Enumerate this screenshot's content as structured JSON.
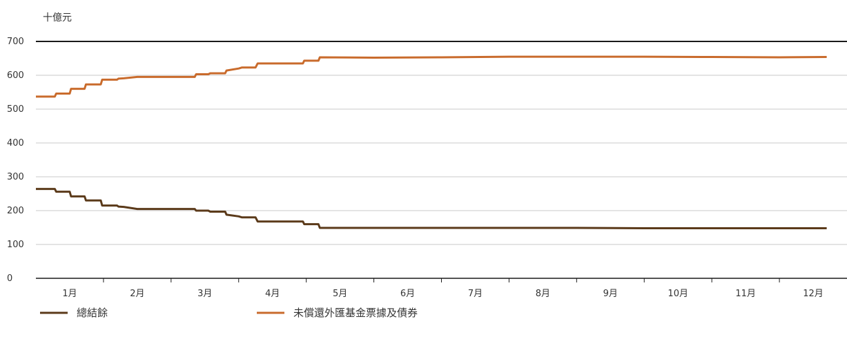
{
  "chart_data": {
    "type": "line",
    "title": "",
    "unit_label": "十億元",
    "xlabel": "",
    "ylabel": "",
    "ylim": [
      0,
      700
    ],
    "yticks": [
      0,
      100,
      200,
      300,
      400,
      500,
      600,
      700
    ],
    "x_tick_labels": [
      "1月",
      "2月",
      "3月",
      "4月",
      "5月",
      "6月",
      "7月",
      "8月",
      "9月",
      "10月",
      "11月",
      "12月"
    ],
    "xlim": [
      0,
      12
    ],
    "grid": true,
    "legend_position": "bottom",
    "series": [
      {
        "name": "總結餘",
        "color": "#5b3a1a",
        "points": [
          [
            0.0,
            264
          ],
          [
            0.28,
            264
          ],
          [
            0.3,
            256
          ],
          [
            0.5,
            256
          ],
          [
            0.52,
            242
          ],
          [
            0.72,
            242
          ],
          [
            0.74,
            230
          ],
          [
            0.96,
            230
          ],
          [
            0.98,
            215
          ],
          [
            1.2,
            215
          ],
          [
            1.22,
            212
          ],
          [
            1.3,
            211
          ],
          [
            1.5,
            205
          ],
          [
            1.8,
            205
          ],
          [
            2.0,
            205
          ],
          [
            2.35,
            205
          ],
          [
            2.37,
            200
          ],
          [
            2.55,
            200
          ],
          [
            2.58,
            197
          ],
          [
            2.8,
            197
          ],
          [
            2.82,
            188
          ],
          [
            3.0,
            183
          ],
          [
            3.05,
            180
          ],
          [
            3.25,
            180
          ],
          [
            3.28,
            168
          ],
          [
            3.95,
            168
          ],
          [
            3.97,
            160
          ],
          [
            4.18,
            160
          ],
          [
            4.2,
            149
          ],
          [
            5.0,
            149
          ],
          [
            6.0,
            149
          ],
          [
            7.0,
            149
          ],
          [
            8.0,
            149
          ],
          [
            9.0,
            148
          ],
          [
            10.0,
            148
          ],
          [
            11.0,
            148
          ],
          [
            11.7,
            148
          ]
        ]
      },
      {
        "name": "未償還外匯基金票據及債券",
        "color": "#c96b2c",
        "points": [
          [
            0.0,
            537
          ],
          [
            0.28,
            537
          ],
          [
            0.3,
            546
          ],
          [
            0.5,
            546
          ],
          [
            0.52,
            560
          ],
          [
            0.72,
            560
          ],
          [
            0.74,
            573
          ],
          [
            0.96,
            573
          ],
          [
            0.98,
            587
          ],
          [
            1.2,
            587
          ],
          [
            1.22,
            590
          ],
          [
            1.3,
            591
          ],
          [
            1.5,
            595
          ],
          [
            2.0,
            595
          ],
          [
            2.35,
            595
          ],
          [
            2.37,
            603
          ],
          [
            2.55,
            603
          ],
          [
            2.58,
            606
          ],
          [
            2.8,
            606
          ],
          [
            2.82,
            614
          ],
          [
            3.0,
            620
          ],
          [
            3.05,
            623
          ],
          [
            3.25,
            623
          ],
          [
            3.28,
            635
          ],
          [
            3.95,
            635
          ],
          [
            3.97,
            643
          ],
          [
            4.18,
            643
          ],
          [
            4.2,
            653
          ],
          [
            5.0,
            652
          ],
          [
            6.0,
            653
          ],
          [
            7.0,
            655
          ],
          [
            8.0,
            655
          ],
          [
            9.0,
            655
          ],
          [
            10.0,
            654
          ],
          [
            11.0,
            653
          ],
          [
            11.7,
            654
          ]
        ]
      }
    ]
  }
}
